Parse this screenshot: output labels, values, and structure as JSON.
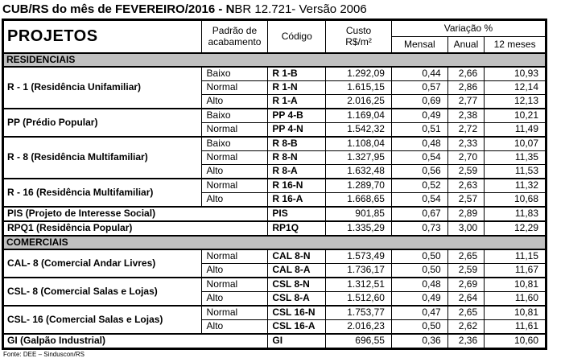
{
  "title": {
    "bold": "CUB/RS do mês de FEVEREIRO/2016 - N",
    "rest": "BR 12.721- Versão 2006"
  },
  "colors": {
    "section_band": "#c0c0c0",
    "border": "#000000",
    "background": "#ffffff"
  },
  "table": {
    "headers": {
      "projects": "PROJETOS",
      "finish_standard": "Padrão de acabamento",
      "code": "Código",
      "cost_line1": "Custo",
      "cost_line2": "R$/m²",
      "variation": "Variação %",
      "monthly": "Mensal",
      "annual": "Anual",
      "twelve_months": "12 meses"
    },
    "sections": [
      {
        "label": "RESIDENCIAIS",
        "groups": [
          {
            "name": "R - 1 (Residência Unifamiliar)",
            "rows": [
              {
                "standard": "Baixo",
                "code": "R 1-B",
                "cost": "1.292,09",
                "monthly": "0,44",
                "annual": "2,66",
                "twelve": "10,93"
              },
              {
                "standard": "Normal",
                "code": "R 1-N",
                "cost": "1.615,15",
                "monthly": "0,57",
                "annual": "2,86",
                "twelve": "12,14"
              },
              {
                "standard": "Alto",
                "code": "R 1-A",
                "cost": "2.016,25",
                "monthly": "0,69",
                "annual": "2,77",
                "twelve": "12,13"
              }
            ]
          },
          {
            "name": "PP (Prédio Popular)",
            "rows": [
              {
                "standard": "Baixo",
                "code": "PP 4-B",
                "cost": "1.169,04",
                "monthly": "0,49",
                "annual": "2,38",
                "twelve": "10,21"
              },
              {
                "standard": "Normal",
                "code": "PP 4-N",
                "cost": "1.542,32",
                "monthly": "0,51",
                "annual": "2,72",
                "twelve": "11,49"
              }
            ]
          },
          {
            "name": "R - 8 (Residência Multifamiliar)",
            "rows": [
              {
                "standard": "Baixo",
                "code": "R 8-B",
                "cost": "1.108,04",
                "monthly": "0,48",
                "annual": "2,33",
                "twelve": "10,07"
              },
              {
                "standard": "Normal",
                "code": "R 8-N",
                "cost": "1.327,95",
                "monthly": "0,54",
                "annual": "2,70",
                "twelve": "11,35"
              },
              {
                "standard": "Alto",
                "code": "R 8-A",
                "cost": "1.632,48",
                "monthly": "0,56",
                "annual": "2,59",
                "twelve": "11,53"
              }
            ]
          },
          {
            "name": "R - 16 (Residência Multifamiliar)",
            "rows": [
              {
                "standard": "Normal",
                "code": "R 16-N",
                "cost": "1.289,70",
                "monthly": "0,52",
                "annual": "2,63",
                "twelve": "11,32"
              },
              {
                "standard": "Alto",
                "code": "R 16-A",
                "cost": "1.668,65",
                "monthly": "0,54",
                "annual": "2,57",
                "twelve": "10,68"
              }
            ]
          },
          {
            "name": "PIS (Projeto de Interesse Social)",
            "rows": [
              {
                "standard": null,
                "code": "PIS",
                "cost": "901,85",
                "monthly": "0,67",
                "annual": "2,89",
                "twelve": "11,83"
              }
            ]
          },
          {
            "name": "RPQ1 (Residência Popular)",
            "rows": [
              {
                "standard": null,
                "code": "RP1Q",
                "cost": "1.335,29",
                "monthly": "0,73",
                "annual": "3,00",
                "twelve": "12,29"
              }
            ]
          }
        ]
      },
      {
        "label": "COMERCIAIS",
        "groups": [
          {
            "name": "CAL- 8 (Comercial Andar Livres)",
            "rows": [
              {
                "standard": "Normal",
                "code": "CAL 8-N",
                "cost": "1.573,49",
                "monthly": "0,50",
                "annual": "2,65",
                "twelve": "11,15"
              },
              {
                "standard": "Alto",
                "code": "CAL 8-A",
                "cost": "1.736,17",
                "monthly": "0,50",
                "annual": "2,59",
                "twelve": "11,67"
              }
            ]
          },
          {
            "name": "CSL- 8 (Comercial Salas e Lojas)",
            "rows": [
              {
                "standard": "Normal",
                "code": "CSL 8-N",
                "cost": "1.312,51",
                "monthly": "0,48",
                "annual": "2,69",
                "twelve": "10,81"
              },
              {
                "standard": "Alto",
                "code": "CSL 8-A",
                "cost": "1.512,60",
                "monthly": "0,49",
                "annual": "2,64",
                "twelve": "11,60"
              }
            ]
          },
          {
            "name": "CSL- 16 (Comercial Salas e Lojas)",
            "rows": [
              {
                "standard": "Normal",
                "code": "CSL 16-N",
                "cost": "1.753,77",
                "monthly": "0,47",
                "annual": "2,65",
                "twelve": "10,81"
              },
              {
                "standard": "Alto",
                "code": "CSL 16-A",
                "cost": "2.016,23",
                "monthly": "0,50",
                "annual": "2,62",
                "twelve": "11,61"
              }
            ]
          },
          {
            "name": "GI (Galpão Industrial)",
            "rows": [
              {
                "standard": null,
                "code": "GI",
                "cost": "696,55",
                "monthly": "0,36",
                "annual": "2,36",
                "twelve": "10,60"
              }
            ]
          }
        ]
      }
    ]
  },
  "footer": {
    "source": "Fonte: DEE – Sinduscon/RS"
  }
}
